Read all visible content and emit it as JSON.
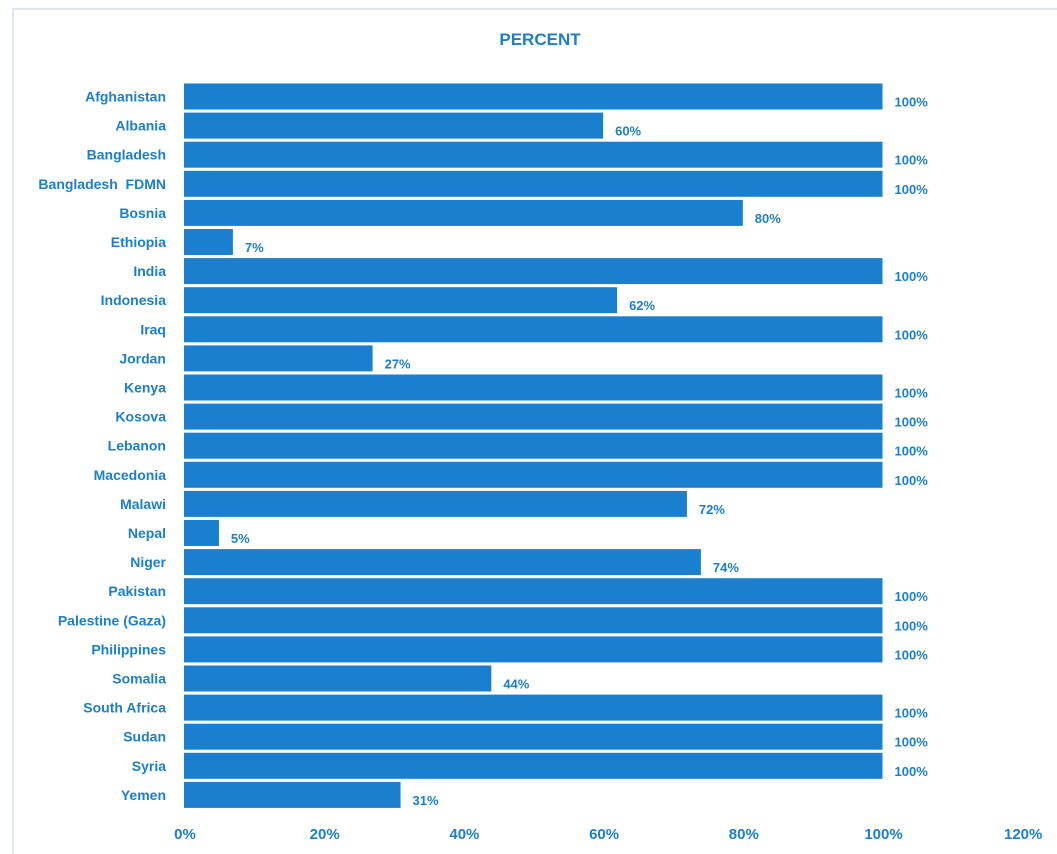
{
  "chart_data": {
    "type": "bar",
    "orientation": "horizontal",
    "title": "PERCENT",
    "categories": [
      "Afghanistan",
      "Albania",
      "Bangladesh",
      "Bangladesh  FDMN",
      "Bosnia",
      "Ethiopia",
      "India",
      "Indonesia",
      "Iraq",
      "Jordan",
      "Kenya",
      "Kosova",
      "Lebanon",
      "Macedonia",
      "Malawi",
      "Nepal",
      "Niger",
      "Pakistan",
      "Palestine (Gaza)",
      "Philippines",
      "Somalia",
      "South Africa",
      "Sudan",
      "Syria",
      "Yemen"
    ],
    "values": [
      100,
      60,
      100,
      100,
      80,
      7,
      100,
      62,
      100,
      27,
      100,
      100,
      100,
      100,
      72,
      5,
      74,
      100,
      100,
      100,
      44,
      100,
      100,
      100,
      31
    ],
    "value_labels": [
      "100%",
      "60%",
      "100%",
      "100%",
      "80%",
      "7%",
      "100%",
      "62%",
      "100%",
      "27%",
      "100%",
      "100%",
      "100%",
      "100%",
      "72%",
      "5%",
      "74%",
      "100%",
      "100%",
      "100%",
      "44%",
      "100%",
      "100%",
      "100%",
      "31%"
    ],
    "xlim": [
      0,
      120
    ],
    "xticks": [
      "0%",
      "20%",
      "40%",
      "60%",
      "80%",
      "100%",
      "120%"
    ],
    "xlabel": "",
    "ylabel": "",
    "grid": false,
    "legend": "none",
    "colors": {
      "bar": "#1a7fce",
      "text": "#1a7fce",
      "frame": "#dde8f2"
    }
  }
}
